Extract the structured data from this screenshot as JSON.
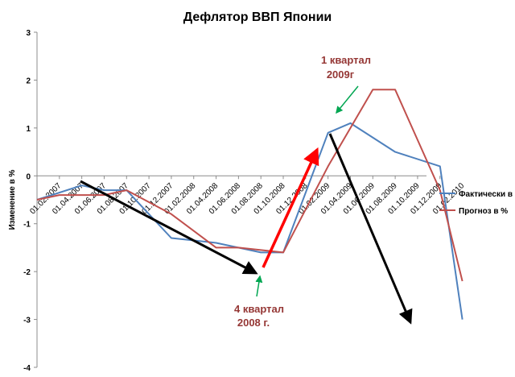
{
  "chart_data": {
    "type": "line",
    "title": "Дефлятор ВВП Японии",
    "ylabel": "Изменение в %",
    "xlabel": "",
    "ylim": [
      -4,
      3
    ],
    "yticks": [
      "3",
      "2",
      "1",
      "0",
      "-1",
      "-2",
      "-3",
      "-4"
    ],
    "categories": [
      "01.02.2007",
      "01.04.2007",
      "01.06.2007",
      "01.08.2007",
      "01.10.2007",
      "01.12.2007",
      "01.02.2008",
      "01.04.2008",
      "01.06.2008",
      "01.08.2008",
      "01.10.2008",
      "01.12.2008",
      "01.02.2009",
      "01.04.2009",
      "01.06.2009",
      "01.08.2009",
      "01.10.2009",
      "01.12.2009",
      "01.02.2010"
    ],
    "series": [
      {
        "name": "Фактически в %",
        "color": "#4f81bd",
        "x": [
          "01.02.2007",
          "01.06.2007",
          "01.08.2007",
          "01.10.2007",
          "01.02.2008",
          "01.06.2008",
          "01.10.2008",
          "01.12.2008",
          "01.04.2009",
          "01.06.2009",
          "01.10.2009",
          "01.02.2010",
          "01.04.2010"
        ],
        "values": [
          -0.5,
          -0.2,
          -0.3,
          -0.3,
          -1.3,
          -1.4,
          -1.6,
          -1.6,
          0.9,
          1.1,
          0.5,
          0.2,
          -3.0
        ]
      },
      {
        "name": "Прогноз в %",
        "color": "#c0504d",
        "x": [
          "01.02.2007",
          "01.04.2007",
          "01.08.2007",
          "01.10.2007",
          "01.02.2008",
          "01.06.2008",
          "01.08.2008",
          "01.12.2008",
          "01.04.2009",
          "01.08.2009",
          "01.10.2009",
          "01.02.2010",
          "01.04.2010"
        ],
        "values": [
          -0.5,
          -0.4,
          -0.4,
          -0.3,
          -0.8,
          -1.5,
          -1.5,
          -1.6,
          0.2,
          1.8,
          1.8,
          -0.3,
          -2.2
        ]
      }
    ],
    "legend_position": "right",
    "grid": false
  },
  "annotations": {
    "q1_2009_line1": "1 квартал",
    "q1_2009_line2": "2009г",
    "q4_2008_line1": "4 квартал",
    "q4_2008_line2": "2008 г."
  }
}
